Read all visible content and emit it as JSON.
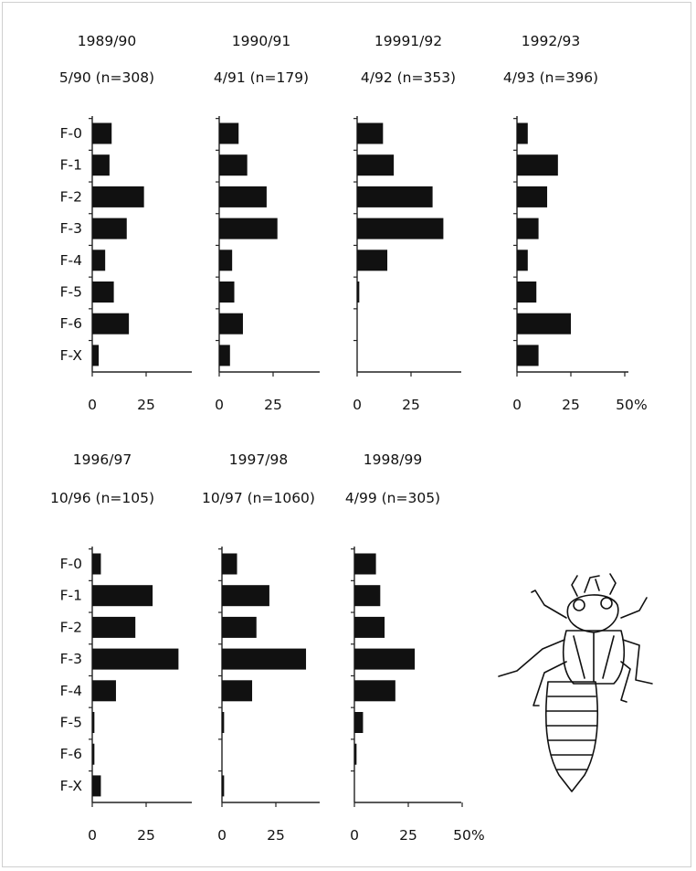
{
  "colors": {
    "bar": "#111111",
    "axis": "#222222",
    "background": "#ffffff"
  },
  "illustration": {
    "name": "dragonfly-larva-icon"
  },
  "chart_data": [
    {
      "type": "bar",
      "orientation": "horizontal",
      "title": "1989/90",
      "subtitle": "5/90 (n=308)",
      "categories": [
        "F-0",
        "F-1",
        "F-2",
        "F-3",
        "F-4",
        "F-5",
        "F-6",
        "F-X"
      ],
      "values": [
        9,
        8,
        24,
        16,
        6,
        10,
        17,
        3
      ],
      "xlim": [
        0,
        50
      ],
      "xticks": [
        "0",
        "25"
      ],
      "unit_label": ""
    },
    {
      "type": "bar",
      "orientation": "horizontal",
      "title": "1990/91",
      "subtitle": "4/91 (n=179)",
      "categories": [
        "F-0",
        "F-1",
        "F-2",
        "F-3",
        "F-4",
        "F-5",
        "F-6",
        "F-X"
      ],
      "values": [
        9,
        13,
        22,
        27,
        6,
        7,
        11,
        5
      ],
      "xlim": [
        0,
        50
      ],
      "xticks": [
        "0",
        "25"
      ],
      "unit_label": ""
    },
    {
      "type": "bar",
      "orientation": "horizontal",
      "title": "19991/92",
      "subtitle": "4/92 (n=353)",
      "categories": [
        "F-0",
        "F-1",
        "F-2",
        "F-3",
        "F-4",
        "F-5",
        "F-6",
        "F-X"
      ],
      "values": [
        12,
        17,
        35,
        40,
        14,
        1,
        0,
        0
      ],
      "xlim": [
        0,
        50
      ],
      "xticks": [
        "0",
        "25"
      ],
      "unit_label": ""
    },
    {
      "type": "bar",
      "orientation": "horizontal",
      "title": "1992/93",
      "subtitle": "4/93 (n=396)",
      "categories": [
        "F-0",
        "F-1",
        "F-2",
        "F-3",
        "F-4",
        "F-5",
        "F-6",
        "F-X"
      ],
      "values": [
        5,
        19,
        14,
        10,
        5,
        9,
        25,
        10
      ],
      "xlim": [
        0,
        50
      ],
      "xticks": [
        "0",
        "25",
        "50"
      ],
      "unit_label": "%"
    },
    {
      "type": "bar",
      "orientation": "horizontal",
      "title": "1996/97",
      "subtitle": "10/96 (n=105)",
      "categories": [
        "F-0",
        "F-1",
        "F-2",
        "F-3",
        "F-4",
        "F-5",
        "F-6",
        "F-X"
      ],
      "values": [
        4,
        28,
        20,
        40,
        11,
        1,
        1,
        4
      ],
      "xlim": [
        0,
        50
      ],
      "xticks": [
        "0",
        "25"
      ],
      "unit_label": ""
    },
    {
      "type": "bar",
      "orientation": "horizontal",
      "title": "1997/98",
      "subtitle": "10/97 (n=1060)",
      "categories": [
        "F-0",
        "F-1",
        "F-2",
        "F-3",
        "F-4",
        "F-5",
        "F-6",
        "F-X"
      ],
      "values": [
        7,
        22,
        16,
        39,
        14,
        1,
        0,
        1
      ],
      "xlim": [
        0,
        50
      ],
      "xticks": [
        "0",
        "25"
      ],
      "unit_label": ""
    },
    {
      "type": "bar",
      "orientation": "horizontal",
      "title": "1998/99",
      "subtitle": "4/99 (n=305)",
      "categories": [
        "F-0",
        "F-1",
        "F-2",
        "F-3",
        "F-4",
        "F-5",
        "F-6",
        "F-X"
      ],
      "values": [
        10,
        12,
        14,
        28,
        19,
        4,
        1,
        0
      ],
      "xlim": [
        0,
        50
      ],
      "xticks": [
        "0",
        "25",
        "50"
      ],
      "unit_label": "%"
    }
  ]
}
